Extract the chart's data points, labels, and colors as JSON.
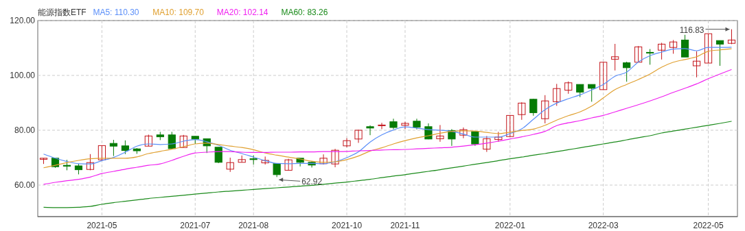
{
  "chart_data": {
    "type": "candlestick",
    "title": "能源指数ETF",
    "categories": [
      null,
      null,
      null,
      null,
      null,
      "2021-05",
      null,
      null,
      null,
      null,
      null,
      null,
      null,
      "2021-07",
      null,
      null,
      null,
      null,
      "2021-08",
      null,
      null,
      null,
      null,
      null,
      null,
      null,
      "2021-10",
      null,
      null,
      null,
      null,
      "2021-11",
      null,
      null,
      null,
      null,
      null,
      null,
      null,
      null,
      "2022-01",
      null,
      null,
      null,
      null,
      null,
      null,
      null,
      "2022-03",
      null,
      null,
      null,
      null,
      null,
      null,
      null,
      null,
      "2022-05",
      null,
      null
    ],
    "ohlc": [
      [
        69.4,
        69.8,
        67.7,
        69.8
      ],
      [
        69.8,
        69.8,
        66.3,
        66.7
      ],
      [
        67.2,
        69.2,
        65.4,
        66.9
      ],
      [
        67.0,
        67.8,
        63.9,
        65.6
      ],
      [
        65.7,
        71.3,
        65.4,
        68.2
      ],
      [
        69.2,
        74.4,
        69.2,
        74.4
      ],
      [
        75.2,
        76.5,
        70.6,
        74.2
      ],
      [
        74.3,
        76.3,
        71.3,
        72.6
      ],
      [
        73.2,
        73.5,
        71.4,
        72.5
      ],
      [
        74.2,
        78.4,
        74.2,
        77.9
      ],
      [
        78.3,
        79.4,
        76.4,
        77.6
      ],
      [
        78.3,
        79.4,
        73.3,
        73.3
      ],
      [
        73.7,
        78.3,
        73.7,
        77.9
      ],
      [
        77.8,
        77.8,
        75.0,
        76.8
      ],
      [
        76.9,
        76.9,
        71.7,
        74.3
      ],
      [
        73.8,
        73.8,
        68.0,
        68.3
      ],
      [
        65.8,
        70.0,
        64.8,
        68.2
      ],
      [
        68.3,
        70.8,
        68.3,
        69.3
      ],
      [
        69.6,
        70.8,
        67.5,
        69.3
      ],
      [
        68.1,
        70.4,
        67.5,
        69.0
      ],
      [
        67.8,
        67.8,
        62.92,
        63.8
      ],
      [
        65.4,
        69.6,
        65.4,
        69.2
      ],
      [
        69.8,
        69.8,
        66.8,
        68.3
      ],
      [
        68.3,
        68.7,
        66.4,
        67.3
      ],
      [
        67.8,
        71.2,
        67.5,
        69.8
      ],
      [
        67.7,
        73.2,
        66.5,
        72.7
      ],
      [
        74.3,
        77.1,
        73.8,
        76.2
      ],
      [
        76.8,
        80.2,
        75.4,
        80.0
      ],
      [
        81.3,
        81.8,
        78.2,
        80.8
      ],
      [
        81.7,
        82.7,
        80.4,
        81.9
      ],
      [
        83.1,
        84.2,
        80.4,
        81.0
      ],
      [
        81.8,
        83.1,
        80.4,
        82.5
      ],
      [
        83.3,
        84.2,
        80.3,
        81.1
      ],
      [
        81.3,
        82.5,
        76.7,
        76.8
      ],
      [
        76.9,
        81.9,
        75.8,
        77.9
      ],
      [
        79.9,
        80.4,
        74.3,
        76.8
      ],
      [
        78.2,
        81.0,
        77.1,
        80.2
      ],
      [
        79.5,
        79.5,
        74.3,
        75.0
      ],
      [
        73.1,
        77.9,
        72.1,
        76.9
      ],
      [
        76.6,
        79.4,
        75.8,
        77.5
      ],
      [
        77.7,
        85.4,
        77.7,
        85.4
      ],
      [
        85.7,
        90.2,
        83.8,
        89.9
      ],
      [
        91.3,
        91.5,
        85.3,
        86.4
      ],
      [
        84.2,
        92.8,
        82.5,
        90.7
      ],
      [
        90.4,
        96.9,
        88.9,
        95.2
      ],
      [
        94.6,
        97.8,
        93.3,
        97.3
      ],
      [
        96.7,
        96.7,
        92.1,
        93.9
      ],
      [
        96.7,
        96.7,
        90.4,
        95.3
      ],
      [
        94.8,
        104.8,
        94.8,
        104.8
      ],
      [
        105.9,
        111.5,
        101.8,
        106.8
      ],
      [
        104.6,
        105.0,
        97.7,
        102.8
      ],
      [
        104.8,
        110.7,
        104.8,
        110.4
      ],
      [
        108.4,
        109.6,
        103.9,
        108.3
      ],
      [
        109.2,
        111.9,
        105.8,
        111.4
      ],
      [
        110.2,
        112.9,
        107.9,
        112.2
      ],
      [
        112.9,
        114.8,
        106.7,
        106.7
      ],
      [
        103.5,
        108.8,
        99.3,
        105.2
      ],
      [
        104.5,
        115.2,
        104.5,
        115.2
      ],
      [
        112.7,
        112.7,
        103.5,
        111.4
      ],
      [
        111.7,
        116.83,
        111.4,
        112.9
      ]
    ],
    "series": [
      {
        "name": "MA5: 110.30",
        "type": "line",
        "color": "#5b8ff9",
        "values": [
          71.3,
          69.8,
          68.6,
          67.8,
          67.7,
          68.9,
          70.1,
          72.0,
          74.2,
          75.0,
          74.8,
          75.0,
          76.0,
          76.6,
          75.8,
          74.5,
          72.7,
          71.5,
          70.2,
          68.9,
          67.9,
          67.8,
          67.9,
          67.9,
          67.8,
          68.5,
          70.0,
          72.1,
          75.7,
          78.3,
          80.1,
          81.2,
          80.8,
          80.2,
          80.0,
          79.6,
          78.6,
          77.5,
          77.5,
          77.5,
          78.8,
          80.5,
          84.0,
          87.5,
          89.9,
          91.5,
          92.9,
          94.7,
          96.7,
          99.7,
          101.2,
          104.9,
          107.2,
          108.5,
          109.6,
          109.8,
          109.0,
          110.2,
          110.2,
          110.3
        ]
      },
      {
        "name": "MA10: 109.70",
        "type": "line",
        "color": "#e0a030",
        "values": [
          66.3,
          67.2,
          68.2,
          69.0,
          69.6,
          69.8,
          69.8,
          69.8,
          70.3,
          71.5,
          72.3,
          73.1,
          74.0,
          75.0,
          75.3,
          74.8,
          74.2,
          73.7,
          72.9,
          71.7,
          70.9,
          70.2,
          69.5,
          68.7,
          68.3,
          68.5,
          69.3,
          70.6,
          72.4,
          73.6,
          75.0,
          76.2,
          77.2,
          78.0,
          78.9,
          79.6,
          79.8,
          79.7,
          79.2,
          78.8,
          79.3,
          79.9,
          80.4,
          81.8,
          83.7,
          85.3,
          86.7,
          88.8,
          91.8,
          94.8,
          96.7,
          98.5,
          100.5,
          103.0,
          104.8,
          105.8,
          106.8,
          108.8,
          109.3,
          109.7
        ]
      },
      {
        "name": "MA20: 102.14",
        "type": "line",
        "color": "#f020f0",
        "values": [
          60.3,
          61.0,
          61.6,
          62.1,
          62.9,
          64.2,
          65.0,
          65.8,
          66.5,
          67.2,
          67.7,
          69.0,
          70.5,
          71.7,
          72.0,
          72.2,
          72.2,
          72.0,
          71.9,
          71.9,
          72.0,
          72.0,
          72.1,
          72.1,
          72.2,
          72.2,
          72.3,
          72.5,
          72.6,
          72.8,
          72.9,
          73.0,
          73.2,
          73.4,
          73.6,
          73.8,
          74.2,
          74.7,
          75.3,
          76.0,
          76.8,
          77.6,
          78.5,
          79.6,
          81.7,
          82.7,
          83.5,
          84.5,
          85.4,
          86.7,
          88.0,
          89.3,
          90.7,
          92.2,
          93.8,
          95.3,
          96.9,
          98.8,
          100.5,
          102.14
        ]
      },
      {
        "name": "MA60: 83.26",
        "type": "line",
        "color": "#1a8a1a",
        "values": [
          51.9,
          51.8,
          51.8,
          51.9,
          52.2,
          53.0,
          53.6,
          54.1,
          54.6,
          55.1,
          55.5,
          55.9,
          56.3,
          56.7,
          57.1,
          57.5,
          57.8,
          58.1,
          58.4,
          58.7,
          59.0,
          59.3,
          59.6,
          59.9,
          60.3,
          60.7,
          61.1,
          61.6,
          62.1,
          62.7,
          63.3,
          63.8,
          64.4,
          65.0,
          65.6,
          66.3,
          66.9,
          67.6,
          68.2,
          68.9,
          69.6,
          70.2,
          70.9,
          71.5,
          72.2,
          72.9,
          73.6,
          74.3,
          75.0,
          75.7,
          76.5,
          77.3,
          78.0,
          79.0,
          79.7,
          80.4,
          81.1,
          81.8,
          82.5,
          83.26
        ]
      }
    ],
    "ylim": [
      48.5,
      120
    ],
    "yticks": [
      {
        "value": 60,
        "label": "60.00"
      },
      {
        "value": 80,
        "label": "80.00"
      },
      {
        "value": 100,
        "label": "100.00"
      },
      {
        "value": 120,
        "label": "120.00"
      }
    ],
    "grid": true,
    "legend": "top",
    "annotations": [
      "62.92",
      "116.83"
    ]
  }
}
